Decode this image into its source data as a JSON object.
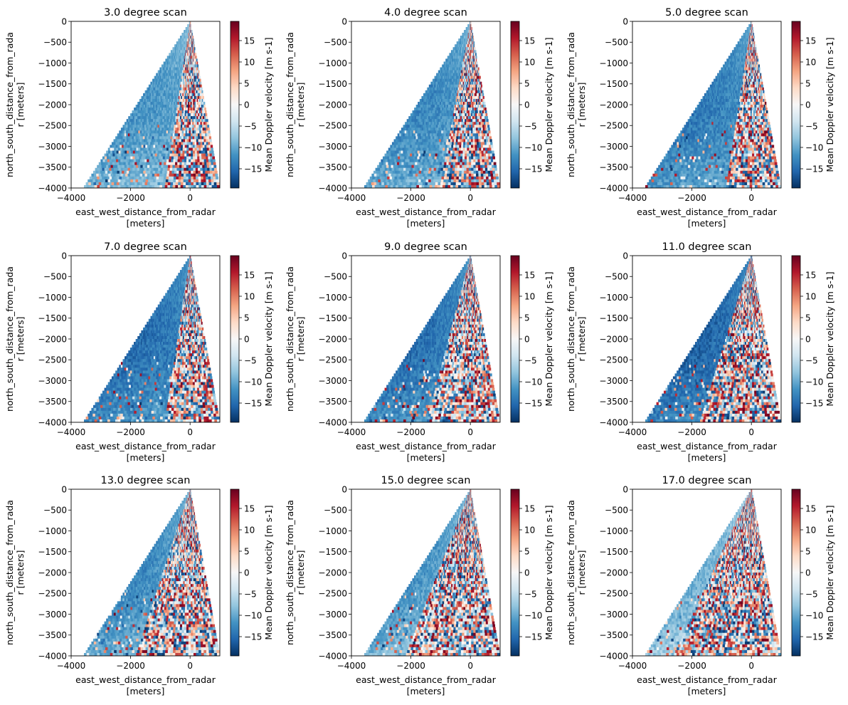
{
  "figure": {
    "colormap": "RdBu_r",
    "colormap_stops": [
      "#053061",
      "#2166ac",
      "#4393c3",
      "#92c5de",
      "#d1e5f0",
      "#f7f7f7",
      "#fddbc7",
      "#f4a582",
      "#d6604d",
      "#b2182b",
      "#67001f"
    ],
    "xlabel_line1": "east_west_distance_from_radar",
    "xlabel_line2": "[meters]",
    "ylabel_line1": "north_south_distance_from_rada",
    "ylabel_line2": "r [meters]",
    "colorbar_label": "Mean Doppler velocity [m s-1]",
    "xticks": [
      "−4000",
      "−2000",
      "0"
    ],
    "yticks": [
      "0",
      "−500",
      "−1000",
      "−1500",
      "−2000",
      "−2500",
      "−3000",
      "−3500",
      "−4000"
    ],
    "cbar_ticks": [
      "15",
      "10",
      "5",
      "0",
      "−5",
      "−10",
      "−15"
    ]
  },
  "chart_data": [
    {
      "type": "heatmap",
      "title": "3.0 degree scan",
      "elevation_deg": 3.0,
      "xlim": [
        -4000,
        1000
      ],
      "ylim": [
        -4000,
        0
      ],
      "clim": [
        -19.5,
        19.5
      ],
      "sector_left_edge_x_at_bottom": -3600,
      "sector_right_edge_x_at_bottom": 1000,
      "noisy_region_boundary_x_at_bottom": -900,
      "smooth_region_mean_velocity": -9
    },
    {
      "type": "heatmap",
      "title": "4.0 degree scan",
      "elevation_deg": 4.0,
      "xlim": [
        -4000,
        1000
      ],
      "ylim": [
        -4000,
        0
      ],
      "clim": [
        -19.5,
        19.5
      ],
      "sector_left_edge_x_at_bottom": -3600,
      "sector_right_edge_x_at_bottom": 1000,
      "noisy_region_boundary_x_at_bottom": -1000,
      "smooth_region_mean_velocity": -10
    },
    {
      "type": "heatmap",
      "title": "5.0 degree scan",
      "elevation_deg": 5.0,
      "xlim": [
        -4000,
        1000
      ],
      "ylim": [
        -4000,
        0
      ],
      "clim": [
        -19.5,
        19.5
      ],
      "sector_left_edge_x_at_bottom": -3600,
      "sector_right_edge_x_at_bottom": 1000,
      "noisy_region_boundary_x_at_bottom": -900,
      "smooth_region_mean_velocity": -11
    },
    {
      "type": "heatmap",
      "title": "7.0 degree scan",
      "elevation_deg": 7.0,
      "xlim": [
        -4000,
        1000
      ],
      "ylim": [
        -4000,
        0
      ],
      "clim": [
        -19.5,
        19.5
      ],
      "sector_left_edge_x_at_bottom": -3600,
      "sector_right_edge_x_at_bottom": 1000,
      "noisy_region_boundary_x_at_bottom": -900,
      "smooth_region_mean_velocity": -12
    },
    {
      "type": "heatmap",
      "title": "9.0 degree scan",
      "elevation_deg": 9.0,
      "xlim": [
        -4000,
        1000
      ],
      "ylim": [
        -4000,
        0
      ],
      "clim": [
        -19.5,
        19.5
      ],
      "sector_left_edge_x_at_bottom": -3600,
      "sector_right_edge_x_at_bottom": 1000,
      "noisy_region_boundary_x_at_bottom": -1500,
      "smooth_region_mean_velocity": -12
    },
    {
      "type": "heatmap",
      "title": "11.0 degree scan",
      "elevation_deg": 11.0,
      "xlim": [
        -4000,
        1000
      ],
      "ylim": [
        -4000,
        0
      ],
      "clim": [
        -19.5,
        19.5
      ],
      "sector_left_edge_x_at_bottom": -3600,
      "sector_right_edge_x_at_bottom": 1000,
      "noisy_region_boundary_x_at_bottom": -1700,
      "smooth_region_mean_velocity": -13
    },
    {
      "type": "heatmap",
      "title": "13.0 degree scan",
      "elevation_deg": 13.0,
      "xlim": [
        -4000,
        1000
      ],
      "ylim": [
        -4000,
        0
      ],
      "clim": [
        -19.5,
        19.5
      ],
      "sector_left_edge_x_at_bottom": -3600,
      "sector_right_edge_x_at_bottom": 1000,
      "noisy_region_boundary_x_at_bottom": -1800,
      "smooth_region_mean_velocity": -10
    },
    {
      "type": "heatmap",
      "title": "15.0 degree scan",
      "elevation_deg": 15.0,
      "xlim": [
        -4000,
        1000
      ],
      "ylim": [
        -4000,
        0
      ],
      "clim": [
        -19.5,
        19.5
      ],
      "sector_left_edge_x_at_bottom": -3600,
      "sector_right_edge_x_at_bottom": 1000,
      "noisy_region_boundary_x_at_bottom": -2200,
      "smooth_region_mean_velocity": -9
    },
    {
      "type": "heatmap",
      "title": "17.0 degree scan",
      "elevation_deg": 17.0,
      "xlim": [
        -4000,
        1000
      ],
      "ylim": [
        -4000,
        0
      ],
      "clim": [
        -19.5,
        19.5
      ],
      "sector_left_edge_x_at_bottom": -3600,
      "sector_right_edge_x_at_bottom": 1000,
      "noisy_region_boundary_x_at_bottom": -2600,
      "smooth_region_mean_velocity": -7
    }
  ]
}
